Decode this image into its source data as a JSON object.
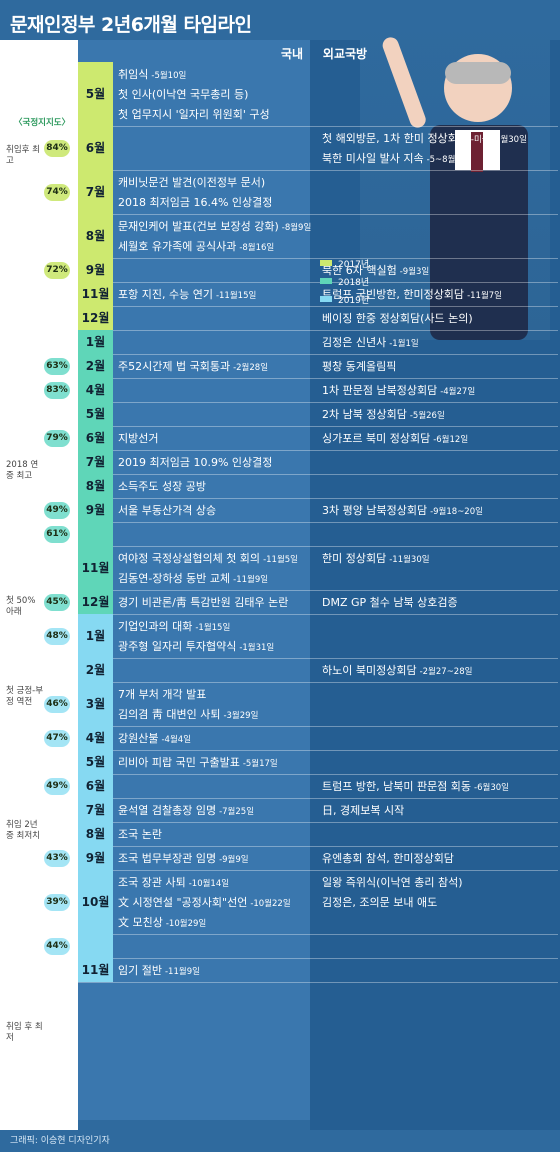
{
  "title": "문재인정부 2년6개월 타임라인",
  "credit": "그래픽: 이승현 디자인기자",
  "columns": {
    "domestic": "국내",
    "foreign": "외교국방"
  },
  "left_caption": "〈국정지지도〉",
  "legend": [
    {
      "label": "2017년",
      "color": "#cde96f"
    },
    {
      "label": "2018년",
      "color": "#5fd6b8"
    },
    {
      "label": "2019년",
      "color": "#86d9f2"
    }
  ],
  "side_notes": [
    {
      "text": "취임후 최고"
    },
    {
      "text": "2018 연중 최고"
    },
    {
      "text": "첫 50% 아래"
    },
    {
      "text": "첫 긍정-부정 역전"
    },
    {
      "text": "취임 2년중 최저치"
    },
    {
      "text": "취임 후 최저"
    }
  ],
  "chart_data": {
    "type": "table",
    "title": "문재인정부 2년6개월 타임라인",
    "rows": [
      {
        "month": "5월",
        "year": 2017,
        "domestic": [
          "취임식",
          "첫 인사(이낙연 국무총리 등)",
          "첫 업무지시 '일자리 위원회' 구성"
        ],
        "domestic_dates": [
          "5월10일",
          "",
          ""
        ],
        "foreign": []
      },
      {
        "month": "6월",
        "year": 2017,
        "approval": "84%",
        "domestic": [],
        "foreign": [
          "첫 해외방문, 1차 한미 정상회담",
          "북한 미사일 발사 지속"
        ],
        "foreign_dates": [
          "미국, 6월30일",
          "5~8월"
        ]
      },
      {
        "month": "7월",
        "year": 2017,
        "approval": "74%",
        "domestic": [
          "캐비닛문건 발견(이전정부 문서)",
          "2018 최저임금 16.4% 인상결정"
        ],
        "foreign": []
      },
      {
        "month": "8월",
        "year": 2017,
        "domestic": [
          "문재인케어 발표(건보 보장성 강화)",
          "세월호 유가족에 공식사과"
        ],
        "domestic_dates": [
          "8월9일",
          "8월16일"
        ],
        "foreign": []
      },
      {
        "month": "9월",
        "year": 2017,
        "approval": "72%",
        "domestic": [],
        "foreign": [
          "북한 6차 핵실험"
        ],
        "foreign_dates": [
          "9월3일"
        ]
      },
      {
        "month": "11월",
        "year": 2017,
        "domestic": [
          "포항 지진, 수능 연기"
        ],
        "domestic_dates": [
          "11월15일"
        ],
        "foreign": [
          "트럼프 국빈방한, 한미정상회담"
        ],
        "foreign_dates": [
          "11월7일"
        ]
      },
      {
        "month": "12월",
        "year": 2017,
        "domestic": [],
        "foreign": [
          "베이징 한중 정상회담(사드 논의)"
        ]
      },
      {
        "month": "1월",
        "year": 2018,
        "domestic": [],
        "foreign": [
          "김정은 신년사"
        ],
        "foreign_dates": [
          "1월1일"
        ]
      },
      {
        "month": "2월",
        "year": 2018,
        "approval": "63%",
        "domestic": [
          "주52시간제 법 국회통과"
        ],
        "domestic_dates": [
          "2월28일"
        ],
        "foreign": [
          "평창 동계올림픽"
        ]
      },
      {
        "month": "4월",
        "year": 2018,
        "approval": "83%",
        "domestic": [],
        "foreign": [
          "1차 판문점 남북정상회담"
        ],
        "foreign_dates": [
          "4월27일"
        ]
      },
      {
        "month": "5월",
        "year": 2018,
        "domestic": [],
        "foreign": [
          "2차 남북 정상회담"
        ],
        "foreign_dates": [
          "5월26일"
        ]
      },
      {
        "month": "6월",
        "year": 2018,
        "approval": "79%",
        "domestic": [
          "지방선거"
        ],
        "foreign": [
          "싱가포르 북미 정상회담"
        ],
        "foreign_dates": [
          "6월12일"
        ]
      },
      {
        "month": "7월",
        "year": 2018,
        "domestic": [
          "2019 최저임금 10.9% 인상결정"
        ],
        "foreign": []
      },
      {
        "month": "8월",
        "year": 2018,
        "domestic": [
          "소득주도 성장 공방"
        ],
        "foreign": []
      },
      {
        "month": "9월",
        "year": 2018,
        "approval": "49%",
        "domestic": [
          "서울 부동산가격 상승"
        ],
        "foreign": [
          "3차 평양 남북정상회담"
        ],
        "foreign_dates": [
          "9월18~20일"
        ]
      },
      {
        "month": "",
        "year": 2018,
        "approval": "61%",
        "domestic": [],
        "foreign": []
      },
      {
        "month": "11월",
        "year": 2018,
        "domestic": [
          "여야정 국정상설협의체 첫 회의",
          "김동연-장하성 동반 교체"
        ],
        "domestic_dates": [
          "11월5일",
          "11월9일"
        ],
        "foreign": [
          "한미 정상회담"
        ],
        "foreign_dates": [
          "11월30일"
        ]
      },
      {
        "month": "12월",
        "year": 2018,
        "approval": "45%",
        "domestic": [
          "경기 비관론/靑 특감반원 김태우 논란"
        ],
        "foreign": [
          "DMZ GP 철수 남북 상호검증"
        ]
      },
      {
        "month": "1월",
        "year": 2019,
        "approval": "48%",
        "domestic": [
          "기업인과의 대화",
          "광주형 일자리 투자협약식"
        ],
        "domestic_dates": [
          "1월15일",
          "1월31일"
        ],
        "foreign": []
      },
      {
        "month": "2월",
        "year": 2019,
        "domestic": [],
        "foreign": [
          "하노이 북미정상회담"
        ],
        "foreign_dates": [
          "2월27~28일"
        ]
      },
      {
        "month": "3월",
        "year": 2019,
        "approval": "46%",
        "domestic": [
          "7개 부처 개각 발표",
          "김의겸 靑 대변인 사퇴"
        ],
        "domestic_dates": [
          "",
          "3월29일"
        ],
        "foreign": []
      },
      {
        "month": "4월",
        "year": 2019,
        "approval": "47%",
        "domestic": [
          "강원산불"
        ],
        "domestic_dates": [
          "4월4일"
        ],
        "foreign": []
      },
      {
        "month": "5월",
        "year": 2019,
        "domestic": [
          "리비아 피랍 국민 구출발표"
        ],
        "domestic_dates": [
          "5월17일"
        ],
        "foreign": []
      },
      {
        "month": "6월",
        "year": 2019,
        "approval": "49%",
        "domestic": [],
        "foreign": [
          "트럼프 방한, 남북미 판문점 회동"
        ],
        "foreign_dates": [
          "6월30일"
        ]
      },
      {
        "month": "7월",
        "year": 2019,
        "domestic": [
          "윤석열 검찰총장 임명"
        ],
        "domestic_dates": [
          "7월25일"
        ],
        "foreign": [
          "日, 경제보복 시작"
        ]
      },
      {
        "month": "8월",
        "year": 2019,
        "domestic": [
          "조국 논란"
        ],
        "foreign": []
      },
      {
        "month": "9월",
        "year": 2019,
        "approval": "43%",
        "domestic": [
          "조국 법무부장관 임명"
        ],
        "domestic_dates": [
          "9월9일"
        ],
        "foreign": [
          "유엔총회 참석, 한미정상회담"
        ]
      },
      {
        "month": "10월",
        "year": 2019,
        "approval": "39%",
        "domestic": [
          "조국 장관 사퇴",
          "文 시정연설 \"공정사회\"선언",
          "文 모친상"
        ],
        "domestic_dates": [
          "10월14일",
          "10월22일",
          "10월29일"
        ],
        "foreign": [
          "일왕 즉위식(이낙연 총리 참석)",
          "김정은, 조의문 보내 애도"
        ]
      },
      {
        "month": "",
        "year": 2019,
        "approval": "44%",
        "domestic": [],
        "foreign": []
      },
      {
        "month": "11월",
        "year": 2019,
        "domestic": [
          "임기 절반"
        ],
        "domestic_dates": [
          "11월9일"
        ],
        "foreign": []
      }
    ]
  }
}
